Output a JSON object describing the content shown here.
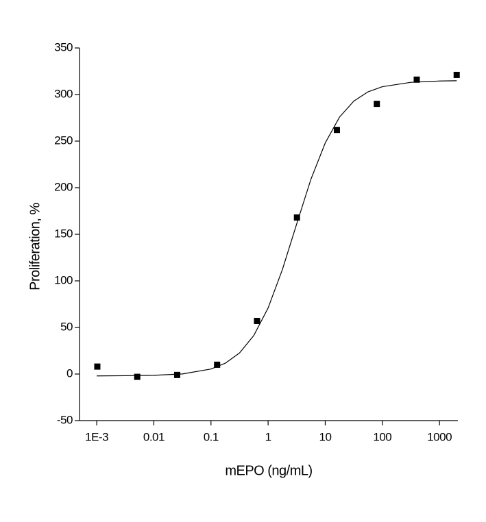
{
  "chart_data": {
    "type": "scatter",
    "x_label": "mEPO (ng/mL)",
    "y_label": "Proliferation, %",
    "x_scale": "log",
    "xlim": [
      0.0005,
      2100
    ],
    "xticks": [
      {
        "value": 0.001,
        "label": "1E-3"
      },
      0.01,
      0.1,
      1,
      10,
      100,
      1000
    ],
    "ylim": [
      -50,
      350
    ],
    "yticks": [
      -50,
      0,
      50,
      100,
      150,
      200,
      250,
      300,
      350
    ],
    "series": [
      {
        "kind": "points",
        "color": "#000000",
        "x": [
          0.001024,
          0.00512,
          0.0256,
          0.128,
          0.64,
          3.2,
          16,
          80,
          400,
          2000
        ],
        "values": [
          8,
          -3,
          -1,
          10,
          57,
          168,
          262,
          290,
          316,
          321
        ]
      },
      {
        "kind": "line",
        "color": "#000000",
        "x": [
          0.001,
          0.00316,
          0.01,
          0.0316,
          0.1,
          0.178,
          0.316,
          0.562,
          1,
          1.78,
          3.16,
          5.62,
          10,
          17.8,
          31.6,
          56.2,
          100,
          316,
          1000,
          2000
        ],
        "values": [
          -2.0,
          -1.8,
          -1.4,
          0.1,
          5.4,
          11.6,
          22.6,
          41.4,
          70.9,
          112.2,
          161,
          209.1,
          248,
          275.8,
          292.9,
          302.9,
          308.4,
          313.1,
          314.5,
          314.8
        ]
      }
    ]
  }
}
